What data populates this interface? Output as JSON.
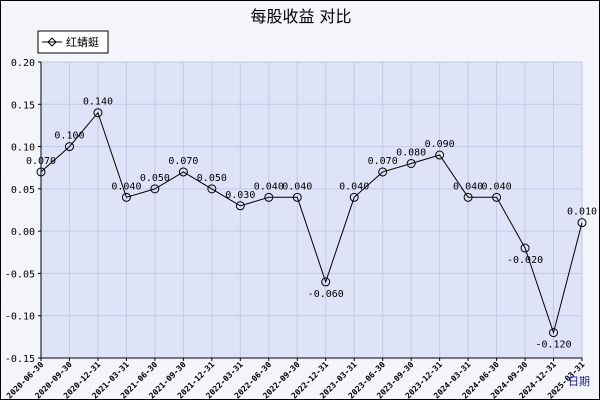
{
  "chart_data": {
    "type": "line",
    "title": "每股收益  对比",
    "x_axis_label": "日期",
    "categories": [
      "2020-06-30",
      "2020-09-30",
      "2020-12-31",
      "2021-03-31",
      "2021-06-30",
      "2021-09-30",
      "2021-12-31",
      "2022-03-31",
      "2022-06-30",
      "2022-09-30",
      "2022-12-31",
      "2023-03-31",
      "2023-06-30",
      "2023-09-30",
      "2023-12-31",
      "2024-03-31",
      "2024-06-30",
      "2024-09-30",
      "2024-12-31",
      "2025-03-31"
    ],
    "series": [
      {
        "name": "红蜻蜓",
        "values": [
          0.07,
          0.1,
          0.14,
          0.04,
          0.05,
          0.07,
          0.05,
          0.03,
          0.04,
          0.04,
          -0.06,
          0.04,
          0.07,
          0.08,
          0.09,
          0.04,
          0.04,
          -0.02,
          -0.12,
          0.01
        ],
        "labels": [
          "0.070",
          "0.100",
          "0.140",
          "0.040",
          "0.050",
          "0.070",
          "0.050",
          "0.030",
          "0.040",
          "0.040",
          "-0.060",
          "0.040",
          "0.070",
          "0.080",
          "0.090",
          "0.040",
          "0.040",
          "-0.020",
          "-0.120",
          "0.010"
        ]
      }
    ],
    "ylim": [
      -0.15,
      0.2
    ],
    "yticks": [
      "-0.15",
      "-0.10",
      "-0.05",
      "0.00",
      "0.05",
      "0.10",
      "0.15",
      "0.20"
    ],
    "grid": true,
    "legend_position": "top-left",
    "colors": {
      "plot_bg": "#dfe3f8",
      "grid": "#c3c8e6",
      "line": "#000000"
    }
  }
}
